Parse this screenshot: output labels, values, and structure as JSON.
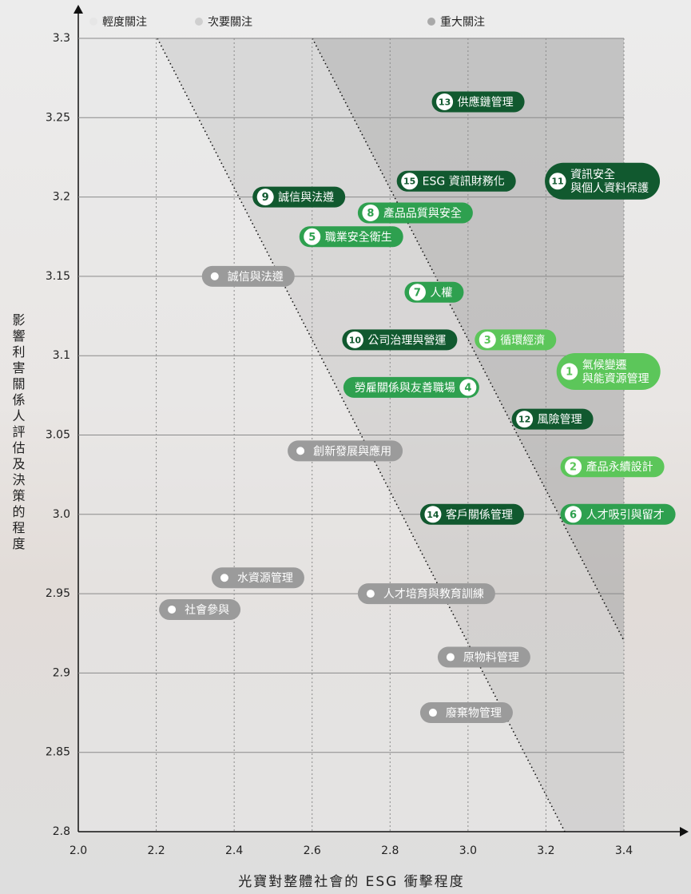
{
  "chart_data": {
    "type": "scatter",
    "x_label": "光寶對整體社會的 ESG 衝擊程度",
    "y_label": "影響利害關係人評估及決策的程度",
    "legend": [
      {
        "name": "輕度關注",
        "color": "#e6e6e6"
      },
      {
        "name": "次要關注",
        "color": "#cfcfcf"
      },
      {
        "name": "重大關注",
        "color": "#a9a9a9"
      }
    ],
    "xlim": [
      2,
      3.4
    ],
    "ylim": [
      2.8,
      3.3
    ],
    "xticks": [
      {
        "value": 2,
        "label": "2.0"
      },
      2.2,
      2.4,
      2.6,
      2.8,
      {
        "value": 3,
        "label": "3.0"
      },
      3.2,
      3.4
    ],
    "yticks": [
      3.3,
      3.25,
      3.2,
      3.15,
      3.1,
      3.05,
      {
        "value": 3,
        "label": "3.0"
      },
      2.95,
      2.9,
      2.85,
      2.8
    ],
    "grid": true,
    "points": [
      {
        "number": "13",
        "label": [
          "供應鏈管理"
        ],
        "x": 2.94,
        "y": 3.26,
        "color": "#11592f"
      },
      {
        "number": "11",
        "label": [
          "資訊安全",
          "與個人資料保護"
        ],
        "x": 3.23,
        "y": 3.21,
        "color": "#11592f"
      },
      {
        "number": "15",
        "label": [
          "ESG 資訊財務化"
        ],
        "x": 2.85,
        "y": 3.21,
        "color": "#11592f"
      },
      {
        "number": "9",
        "label": [
          "誠信與法遵"
        ],
        "x": 2.48,
        "y": 3.2,
        "color": "#11592f"
      },
      {
        "number": "8",
        "label": [
          "產品品質與安全"
        ],
        "x": 2.75,
        "y": 3.19,
        "color": "#2ea04f"
      },
      {
        "number": "5",
        "label": [
          "職業安全衛生"
        ],
        "x": 2.6,
        "y": 3.175,
        "color": "#2ea04f"
      },
      {
        "number": "7",
        "label": [
          "人權"
        ],
        "x": 2.87,
        "y": 3.14,
        "color": "#2ea04f"
      },
      {
        "label": [
          "誠信與法遵"
        ],
        "x": 2.35,
        "y": 3.15,
        "color": "#9b9b9b"
      },
      {
        "number": "10",
        "label": [
          "公司治理與營運"
        ],
        "x": 2.71,
        "y": 3.11,
        "color": "#11592f"
      },
      {
        "number": "3",
        "label": [
          "循環經濟"
        ],
        "x": 3.05,
        "y": 3.11,
        "color": "#5cc65a"
      },
      {
        "number": "1",
        "label": [
          "氣候變遷",
          "與能資源管理"
        ],
        "x": 3.26,
        "y": 3.09,
        "color": "#5cc65a"
      },
      {
        "number": "4",
        "label": [
          "勞雇關係與友善職場"
        ],
        "x": 3.0,
        "y": 3.08,
        "color": "#2ea04f"
      },
      {
        "number": "12",
        "label": [
          "風險管理"
        ],
        "x": 3.145,
        "y": 3.06,
        "color": "#11592f"
      },
      {
        "label": [
          "創新發展與應用"
        ],
        "x": 2.57,
        "y": 3.04,
        "color": "#9b9b9b"
      },
      {
        "number": "2",
        "label": [
          "產品永續設計"
        ],
        "x": 3.27,
        "y": 3.03,
        "color": "#5cc65a"
      },
      {
        "number": "6",
        "label": [
          "人才吸引與留才"
        ],
        "x": 3.27,
        "y": 3.0,
        "color": "#2ea04f"
      },
      {
        "number": "14",
        "label": [
          "客戶關係管理"
        ],
        "x": 2.91,
        "y": 3.0,
        "color": "#11592f"
      },
      {
        "label": [
          "水資源管理"
        ],
        "x": 2.375,
        "y": 2.96,
        "color": "#9b9b9b"
      },
      {
        "label": [
          "人才培育與教育訓練"
        ],
        "x": 2.75,
        "y": 2.95,
        "color": "#9b9b9b"
      },
      {
        "label": [
          "社會參與"
        ],
        "x": 2.24,
        "y": 2.94,
        "color": "#9b9b9b"
      },
      {
        "label": [
          "原物料管理"
        ],
        "x": 2.955,
        "y": 2.91,
        "color": "#9b9b9b"
      },
      {
        "label": [
          "廢棄物管理"
        ],
        "x": 2.91,
        "y": 2.875,
        "color": "#9b9b9b"
      }
    ]
  }
}
